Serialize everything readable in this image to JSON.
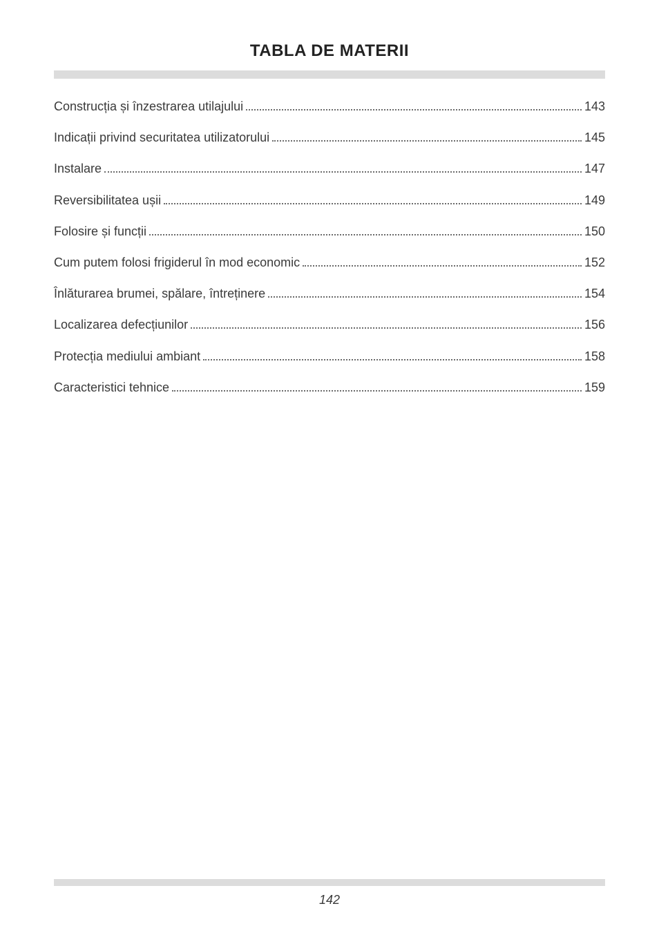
{
  "title": "TABLA DE MATERII",
  "pageNumber": "142",
  "styling": {
    "pageWidth": 954,
    "pageHeight": 1354,
    "background": "#ffffff",
    "textColor": "#3a3a3a",
    "titleColor": "#222222",
    "dividerColor": "#dcdcdc",
    "dotColor": "#6a6a6a",
    "titleFontSize": 24,
    "bodyFontSize": 18,
    "titleFontWeight": "bold",
    "pageNumberFontStyle": "italic",
    "rowSpacing": 20,
    "dividerTopHeight": 12,
    "dividerBottomHeight": 10
  },
  "toc": [
    {
      "label": "Construcția și înzestrarea utilajului",
      "page": "143"
    },
    {
      "label": "Indicații privind securitatea utilizatorului",
      "page": "145"
    },
    {
      "label": "Instalare",
      "page": "147"
    },
    {
      "label": "Reversibilitatea ușii",
      "page": "149"
    },
    {
      "label": "Folosire și funcții",
      "page": "150"
    },
    {
      "label": "Cum putem folosi frigiderul în mod economic",
      "page": "152"
    },
    {
      "label": "Înlăturarea brumei, spălare, întreținere",
      "page": "154"
    },
    {
      "label": "Localizarea defecțiunilor",
      "page": "156"
    },
    {
      "label": "Protecția mediului ambiant",
      "page": "158"
    },
    {
      "label": "Caracteristici tehnice",
      "page": "159"
    }
  ]
}
